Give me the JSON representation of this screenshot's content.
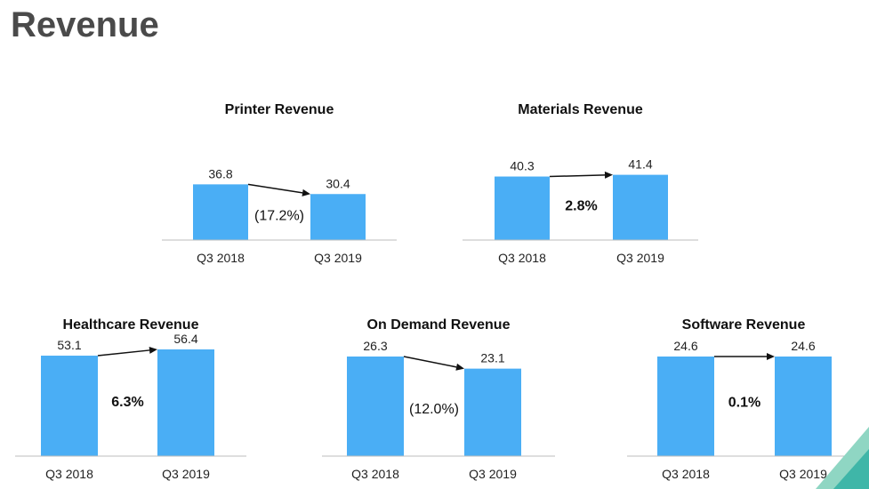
{
  "page": {
    "title": "Revenue",
    "accent_colors": [
      "#8fd6c3",
      "#3fb6a8"
    ]
  },
  "chart_data": [
    {
      "type": "bar",
      "title": "Printer Revenue",
      "categories": [
        "Q3 2018",
        "Q3 2019"
      ],
      "values": [
        36.8,
        30.4
      ],
      "value_labels": [
        "36.8",
        "30.4"
      ],
      "change_label": "(17.2%)",
      "change_bold": false,
      "xlabel": "",
      "ylabel": "",
      "ylim": [
        0,
        56.4
      ],
      "grid": false,
      "color": "#4aaef5"
    },
    {
      "type": "bar",
      "title": "Materials Revenue",
      "categories": [
        "Q3 2018",
        "Q3 2019"
      ],
      "values": [
        40.3,
        41.4
      ],
      "value_labels": [
        "40.3",
        "41.4"
      ],
      "change_label": "2.8%",
      "change_bold": true,
      "xlabel": "",
      "ylabel": "",
      "ylim": [
        0,
        56.4
      ],
      "grid": false,
      "color": "#4aaef5"
    },
    {
      "type": "bar",
      "title": "Healthcare Revenue",
      "categories": [
        "Q3 2018",
        "Q3 2019"
      ],
      "values": [
        53.1,
        56.4
      ],
      "value_labels": [
        "53.1",
        "56.4"
      ],
      "change_label": "6.3%",
      "change_bold": true,
      "xlabel": "",
      "ylabel": "",
      "ylim": [
        0,
        56.4
      ],
      "grid": false,
      "color": "#4aaef5"
    },
    {
      "type": "bar",
      "title": "On Demand Revenue",
      "categories": [
        "Q3 2018",
        "Q3 2019"
      ],
      "values": [
        26.3,
        23.1
      ],
      "value_labels": [
        "26.3",
        "23.1"
      ],
      "change_label": "(12.0%)",
      "change_bold": false,
      "xlabel": "",
      "ylabel": "",
      "ylim": [
        0,
        26.3
      ],
      "grid": false,
      "color": "#4aaef5"
    },
    {
      "type": "bar",
      "title": "Software Revenue",
      "categories": [
        "Q3 2018",
        "Q3 2019"
      ],
      "values": [
        24.6,
        24.6
      ],
      "value_labels": [
        "24.6",
        "24.6"
      ],
      "change_label": "0.1%",
      "change_bold": true,
      "xlabel": "",
      "ylabel": "",
      "ylim": [
        0,
        24.6
      ],
      "grid": false,
      "color": "#4aaef5"
    }
  ]
}
